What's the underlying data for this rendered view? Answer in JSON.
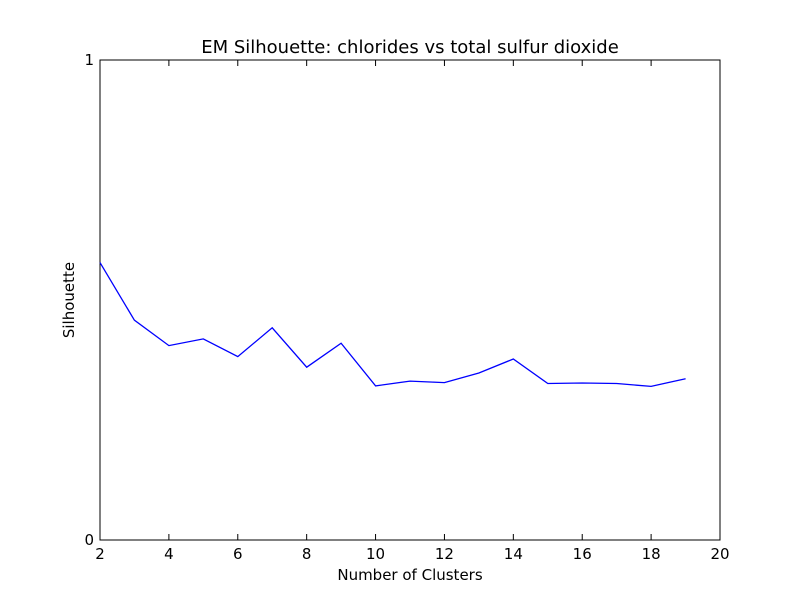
{
  "chart_data": {
    "type": "line",
    "title": "EM Silhouette: chlorides vs total sulfur dioxide",
    "xlabel": "Number of Clusters",
    "ylabel": "Silhouette",
    "xlim": [
      2,
      20
    ],
    "ylim": [
      0,
      1
    ],
    "x_ticks": [
      2,
      4,
      6,
      8,
      10,
      12,
      14,
      16,
      18,
      20
    ],
    "y_ticks": [
      0,
      1
    ],
    "grid": false,
    "legend": "none",
    "line_color": "#0000ff",
    "series": [
      {
        "x": [
          2,
          3,
          4,
          5,
          6,
          7,
          8,
          9,
          10,
          11,
          12,
          13,
          14,
          15,
          16,
          17,
          18,
          19
        ],
        "values": [
          0.578,
          0.458,
          0.405,
          0.419,
          0.382,
          0.442,
          0.36,
          0.41,
          0.321,
          0.331,
          0.328,
          0.348,
          0.377,
          0.326,
          0.327,
          0.326,
          0.32,
          0.336
        ]
      }
    ]
  }
}
